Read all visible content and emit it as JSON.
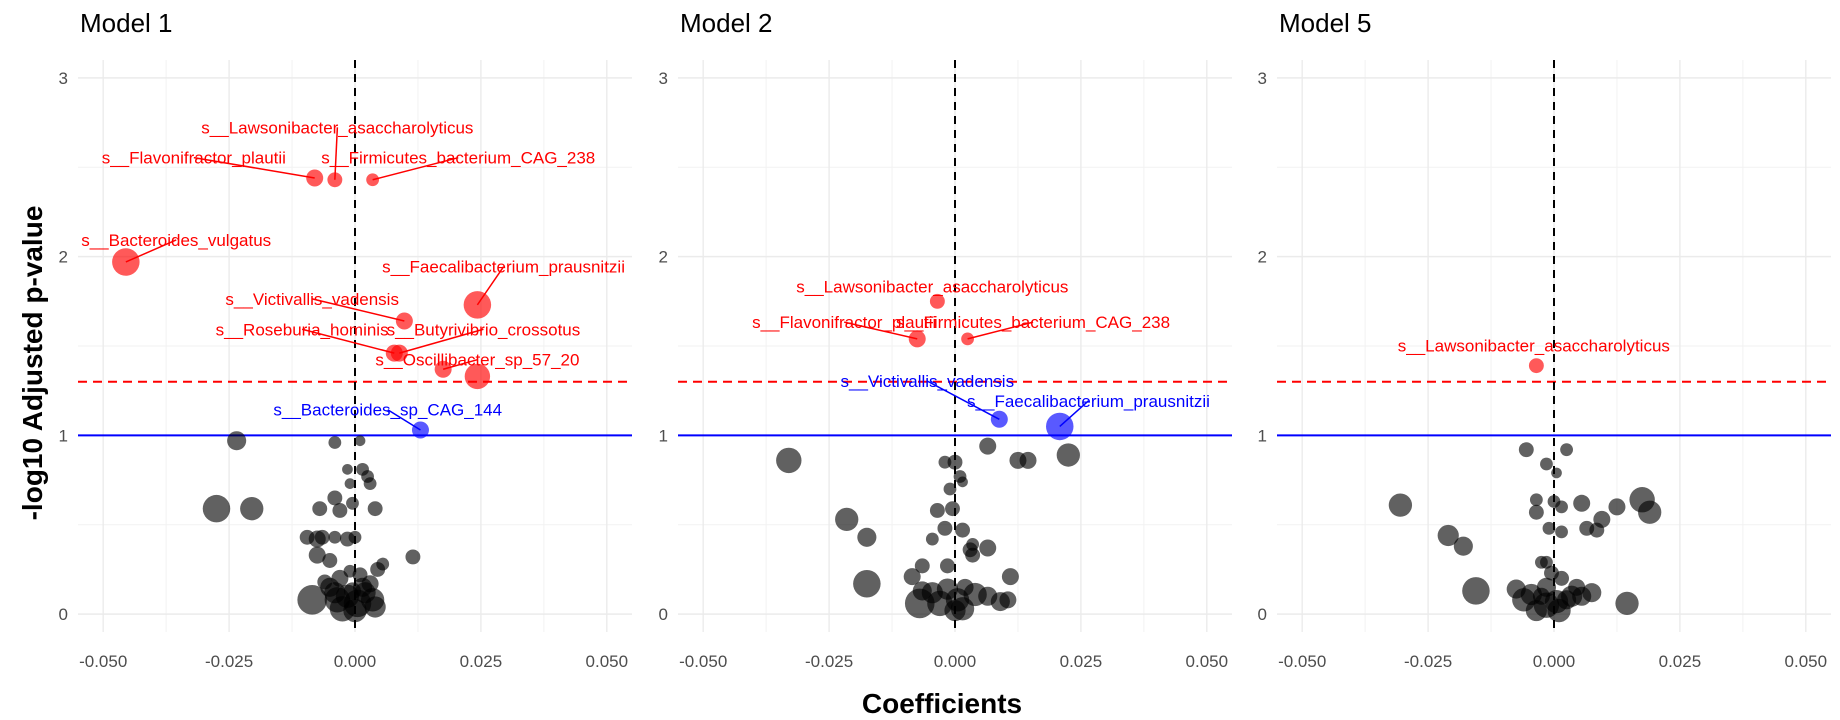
{
  "chart_data": {
    "type": "scatter",
    "xlabel": "Coefficients",
    "ylabel": "-log10 Adjusted p-value",
    "xlim": [
      -0.055,
      0.055
    ],
    "ylim": [
      -0.1,
      3.1
    ],
    "x_ticks": [
      -0.05,
      -0.025,
      0.0,
      0.025,
      0.05
    ],
    "x_tick_labels": [
      "-0.050",
      "-0.025",
      "0.000",
      "0.025",
      "0.050"
    ],
    "y_ticks": [
      0,
      1,
      2,
      3
    ],
    "y_tick_labels": [
      "0",
      "1",
      "2",
      "3"
    ],
    "reference_lines": {
      "vertical_dashed_x": 0,
      "red_dashed_y": 1.3,
      "blue_solid_y": 1.0
    },
    "colors": {
      "significant": "#ff0000",
      "suggestive": "#0000ff",
      "other": "#000000"
    },
    "grid": true,
    "panels": [
      {
        "title": "Model 1",
        "significant": [
          {
            "label": "s__Lawsonibacter_asaccharolyticus",
            "x": -0.004,
            "y": 2.43,
            "size": 5,
            "label_x": -0.0035,
            "label_y": 2.69
          },
          {
            "label": "s__Flavonifractor_plautii",
            "x": -0.008,
            "y": 2.44,
            "size": 6,
            "label_x": -0.032,
            "label_y": 2.52
          },
          {
            "label": "s__Firmicutes_bacterium_CAG_238",
            "x": 0.0035,
            "y": 2.43,
            "size": 4,
            "label_x": 0.0205,
            "label_y": 2.52
          },
          {
            "label": "s__Bacteroides_vulgatus",
            "x": -0.0455,
            "y": 1.97,
            "size": 11,
            "label_x": -0.0355,
            "label_y": 2.06
          },
          {
            "label": "s__Faecalibacterium_prausnitzii",
            "x": 0.0243,
            "y": 1.73,
            "size": 11,
            "label_x": 0.0295,
            "label_y": 1.91
          },
          {
            "label": "s__Victivallis_vadensis",
            "x": 0.0098,
            "y": 1.64,
            "size": 6,
            "label_x": -0.0085,
            "label_y": 1.73
          },
          {
            "label": "s__Butyrivibrio_crossotus",
            "x": 0.0088,
            "y": 1.46,
            "size": 6,
            "label_x": 0.0255,
            "label_y": 1.56
          },
          {
            "label": "s__Roseburia_hominis",
            "x": 0.0078,
            "y": 1.46,
            "size": 6,
            "label_x": -0.0105,
            "label_y": 1.56
          },
          {
            "label": "s__Oscillibacter_sp_57_20",
            "x": 0.0175,
            "y": 1.37,
            "size": 6,
            "label_x": 0.0243,
            "label_y": 1.39
          },
          {
            "label": "",
            "x": 0.0243,
            "y": 1.33,
            "size": 10
          }
        ],
        "suggestive": [
          {
            "label": "s__Bacteroides_sp_CAG_144",
            "x": 0.013,
            "y": 1.03,
            "size": 6,
            "label_x": 0.0065,
            "label_y": 1.11
          }
        ],
        "other": [
          {
            "x": -0.0235,
            "y": 0.97,
            "size": 7
          },
          {
            "x": -0.0275,
            "y": 0.59,
            "size": 11
          },
          {
            "x": -0.0205,
            "y": 0.59,
            "size": 9
          },
          {
            "x": -0.004,
            "y": 0.96,
            "size": 4
          },
          {
            "x": 0.001,
            "y": 0.97,
            "size": 3
          },
          {
            "x": 0.0015,
            "y": 0.81,
            "size": 4
          },
          {
            "x": 0.0025,
            "y": 0.77,
            "size": 4
          },
          {
            "x": 0.003,
            "y": 0.73,
            "size": 4
          },
          {
            "x": -0.0015,
            "y": 0.81,
            "size": 3
          },
          {
            "x": -0.001,
            "y": 0.73,
            "size": 3
          },
          {
            "x": -0.004,
            "y": 0.65,
            "size": 5
          },
          {
            "x": -0.007,
            "y": 0.59,
            "size": 5
          },
          {
            "x": -0.003,
            "y": 0.58,
            "size": 5
          },
          {
            "x": -0.0005,
            "y": 0.62,
            "size": 4
          },
          {
            "x": 0.004,
            "y": 0.59,
            "size": 5
          },
          {
            "x": -0.0095,
            "y": 0.43,
            "size": 5
          },
          {
            "x": -0.0065,
            "y": 0.43,
            "size": 5
          },
          {
            "x": -0.0075,
            "y": 0.42,
            "size": 6
          },
          {
            "x": -0.004,
            "y": 0.43,
            "size": 4
          },
          {
            "x": -0.0015,
            "y": 0.42,
            "size": 5
          },
          {
            "x": 0.0,
            "y": 0.43,
            "size": 4
          },
          {
            "x": 0.0115,
            "y": 0.32,
            "size": 5
          },
          {
            "x": -0.0075,
            "y": 0.33,
            "size": 6
          },
          {
            "x": -0.005,
            "y": 0.3,
            "size": 5
          },
          {
            "x": 0.0045,
            "y": 0.25,
            "size": 5
          },
          {
            "x": 0.0055,
            "y": 0.28,
            "size": 4
          },
          {
            "x": -0.001,
            "y": 0.24,
            "size": 4
          },
          {
            "x": -0.003,
            "y": 0.2,
            "size": 6
          },
          {
            "x": 0.001,
            "y": 0.22,
            "size": 5
          },
          {
            "x": -0.006,
            "y": 0.18,
            "size": 5
          },
          {
            "x": -0.0085,
            "y": 0.08,
            "size": 12
          },
          {
            "x": -0.0035,
            "y": 0.08,
            "size": 10
          },
          {
            "x": -0.004,
            "y": 0.12,
            "size": 8
          },
          {
            "x": -0.0015,
            "y": 0.1,
            "size": 9
          },
          {
            "x": 0.0005,
            "y": 0.06,
            "size": 11
          },
          {
            "x": 0.002,
            "y": 0.12,
            "size": 8
          },
          {
            "x": 0.0035,
            "y": 0.08,
            "size": 9
          },
          {
            "x": -0.0025,
            "y": 0.03,
            "size": 10
          },
          {
            "x": 0.004,
            "y": 0.04,
            "size": 8
          },
          {
            "x": -0.005,
            "y": 0.15,
            "size": 7
          },
          {
            "x": 0.0015,
            "y": 0.15,
            "size": 7
          },
          {
            "x": 0.0,
            "y": 0.02,
            "size": 9
          },
          {
            "x": -0.0005,
            "y": 0.13,
            "size": 6
          },
          {
            "x": 0.003,
            "y": 0.17,
            "size": 6
          }
        ]
      },
      {
        "title": "Model 2",
        "significant": [
          {
            "label": "s__Lawsonibacter_asaccharolyticus",
            "x": -0.0035,
            "y": 1.75,
            "size": 5,
            "label_x": -0.0045,
            "label_y": 1.8
          },
          {
            "label": "s__Flavonifractor_plautii",
            "x": -0.0075,
            "y": 1.54,
            "size": 6,
            "label_x": -0.022,
            "label_y": 1.6
          },
          {
            "label": "s__Firmicutes_bacterium_CAG_238",
            "x": 0.0025,
            "y": 1.54,
            "size": 4,
            "label_x": 0.0155,
            "label_y": 1.6
          }
        ],
        "suggestive": [
          {
            "label": "s__Victivallis_vadensis",
            "x": 0.0088,
            "y": 1.09,
            "size": 6,
            "label_x": -0.0055,
            "label_y": 1.27
          },
          {
            "label": "s__Faecalibacterium_prausnitzii",
            "x": 0.0208,
            "y": 1.05,
            "size": 11,
            "label_x": 0.0265,
            "label_y": 1.16
          }
        ],
        "other": [
          {
            "x": -0.033,
            "y": 0.86,
            "size": 10
          },
          {
            "x": -0.0215,
            "y": 0.53,
            "size": 9
          },
          {
            "x": -0.0175,
            "y": 0.43,
            "size": 7
          },
          {
            "x": -0.0175,
            "y": 0.17,
            "size": 11
          },
          {
            "x": 0.0225,
            "y": 0.89,
            "size": 9
          },
          {
            "x": 0.0145,
            "y": 0.86,
            "size": 6
          },
          {
            "x": 0.0125,
            "y": 0.86,
            "size": 6
          },
          {
            "x": 0.0065,
            "y": 0.94,
            "size": 6
          },
          {
            "x": -0.002,
            "y": 0.85,
            "size": 4
          },
          {
            "x": 0.0,
            "y": 0.85,
            "size": 5
          },
          {
            "x": 0.001,
            "y": 0.77,
            "size": 4
          },
          {
            "x": 0.0015,
            "y": 0.74,
            "size": 3
          },
          {
            "x": -0.001,
            "y": 0.7,
            "size": 4
          },
          {
            "x": -0.0005,
            "y": 0.59,
            "size": 5
          },
          {
            "x": -0.0035,
            "y": 0.58,
            "size": 5
          },
          {
            "x": -0.002,
            "y": 0.48,
            "size": 5
          },
          {
            "x": 0.0015,
            "y": 0.47,
            "size": 5
          },
          {
            "x": 0.0035,
            "y": 0.39,
            "size": 4
          },
          {
            "x": 0.003,
            "y": 0.36,
            "size": 5
          },
          {
            "x": -0.0045,
            "y": 0.42,
            "size": 4
          },
          {
            "x": 0.0035,
            "y": 0.33,
            "size": 5
          },
          {
            "x": 0.0065,
            "y": 0.37,
            "size": 6
          },
          {
            "x": -0.0065,
            "y": 0.27,
            "size": 5
          },
          {
            "x": -0.0015,
            "y": 0.27,
            "size": 5
          },
          {
            "x": 0.011,
            "y": 0.21,
            "size": 6
          },
          {
            "x": -0.0085,
            "y": 0.21,
            "size": 6
          },
          {
            "x": -0.0065,
            "y": 0.13,
            "size": 7
          },
          {
            "x": -0.0015,
            "y": 0.14,
            "size": 8
          },
          {
            "x": 0.004,
            "y": 0.11,
            "size": 9
          },
          {
            "x": -0.007,
            "y": 0.06,
            "size": 12
          },
          {
            "x": -0.003,
            "y": 0.06,
            "size": 10
          },
          {
            "x": 0.0005,
            "y": 0.08,
            "size": 9
          },
          {
            "x": 0.0015,
            "y": 0.03,
            "size": 9
          },
          {
            "x": -0.0045,
            "y": 0.12,
            "size": 8
          },
          {
            "x": 0.0065,
            "y": 0.1,
            "size": 7
          },
          {
            "x": 0.009,
            "y": 0.07,
            "size": 7
          },
          {
            "x": 0.0105,
            "y": 0.08,
            "size": 6
          },
          {
            "x": 0.002,
            "y": 0.15,
            "size": 6
          },
          {
            "x": 0.0,
            "y": 0.02,
            "size": 8
          }
        ]
      },
      {
        "title": "Model 5",
        "significant": [
          {
            "label": "s__Lawsonibacter_asaccharolyticus",
            "x": -0.0035,
            "y": 1.39,
            "size": 5,
            "label_x": -0.004,
            "label_y": 1.47
          }
        ],
        "suggestive": [],
        "other": [
          {
            "x": -0.0305,
            "y": 0.61,
            "size": 9
          },
          {
            "x": -0.021,
            "y": 0.44,
            "size": 8
          },
          {
            "x": -0.018,
            "y": 0.38,
            "size": 7
          },
          {
            "x": -0.0155,
            "y": 0.13,
            "size": 11
          },
          {
            "x": 0.0175,
            "y": 0.64,
            "size": 10
          },
          {
            "x": 0.019,
            "y": 0.57,
            "size": 9
          },
          {
            "x": 0.0125,
            "y": 0.6,
            "size": 6
          },
          {
            "x": 0.0095,
            "y": 0.53,
            "size": 6
          },
          {
            "x": 0.0055,
            "y": 0.62,
            "size": 6
          },
          {
            "x": 0.0065,
            "y": 0.48,
            "size": 5
          },
          {
            "x": 0.0085,
            "y": 0.47,
            "size": 5
          },
          {
            "x": -0.0055,
            "y": 0.92,
            "size": 5
          },
          {
            "x": 0.0025,
            "y": 0.92,
            "size": 4
          },
          {
            "x": -0.0015,
            "y": 0.84,
            "size": 4
          },
          {
            "x": 0.0005,
            "y": 0.79,
            "size": 3
          },
          {
            "x": -0.0035,
            "y": 0.64,
            "size": 4
          },
          {
            "x": 0.0,
            "y": 0.63,
            "size": 4
          },
          {
            "x": 0.0015,
            "y": 0.6,
            "size": 4
          },
          {
            "x": -0.0035,
            "y": 0.57,
            "size": 5
          },
          {
            "x": -0.001,
            "y": 0.48,
            "size": 4
          },
          {
            "x": 0.0015,
            "y": 0.46,
            "size": 4
          },
          {
            "x": -0.0015,
            "y": 0.29,
            "size": 4
          },
          {
            "x": -0.0025,
            "y": 0.29,
            "size": 4
          },
          {
            "x": -0.0005,
            "y": 0.23,
            "size": 5
          },
          {
            "x": 0.0015,
            "y": 0.2,
            "size": 5
          },
          {
            "x": -0.0075,
            "y": 0.14,
            "size": 7
          },
          {
            "x": -0.0045,
            "y": 0.11,
            "size": 8
          },
          {
            "x": -0.006,
            "y": 0.08,
            "size": 9
          },
          {
            "x": -0.0015,
            "y": 0.05,
            "size": 10
          },
          {
            "x": 0.0005,
            "y": 0.07,
            "size": 9
          },
          {
            "x": 0.0035,
            "y": 0.1,
            "size": 8
          },
          {
            "x": 0.0055,
            "y": 0.1,
            "size": 7
          },
          {
            "x": 0.0075,
            "y": 0.12,
            "size": 7
          },
          {
            "x": -0.0015,
            "y": 0.15,
            "size": 7
          },
          {
            "x": 0.0025,
            "y": 0.08,
            "size": 7
          },
          {
            "x": -0.0035,
            "y": 0.02,
            "size": 8
          },
          {
            "x": 0.001,
            "y": 0.02,
            "size": 9
          },
          {
            "x": 0.0145,
            "y": 0.06,
            "size": 9
          },
          {
            "x": 0.0045,
            "y": 0.15,
            "size": 6
          },
          {
            "x": -0.0025,
            "y": 0.1,
            "size": 6
          }
        ]
      }
    ]
  }
}
